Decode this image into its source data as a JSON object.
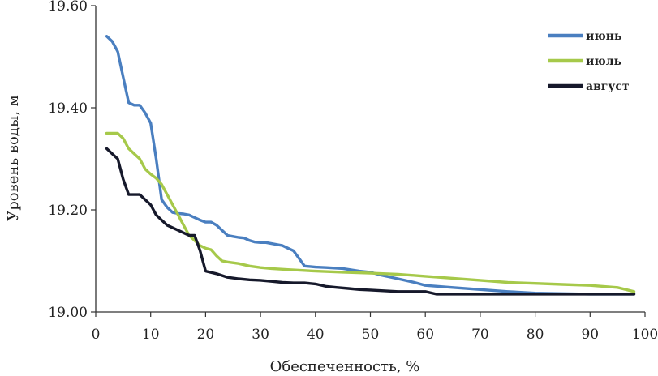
{
  "chart_data": {
    "type": "line",
    "title": "",
    "xlabel": "Обеспеченность, %",
    "ylabel": "Уровень воды, м",
    "xlim": [
      0,
      100
    ],
    "ylim": [
      19.0,
      19.6
    ],
    "x_ticks": [
      "0",
      "10",
      "20",
      "30",
      "40",
      "50",
      "60",
      "70",
      "80",
      "90",
      "100"
    ],
    "y_ticks": [
      "19.00",
      "19.20",
      "19.40",
      "19.60"
    ],
    "grid": false,
    "legend_position": "top-right",
    "series": [
      {
        "name": "июнь",
        "color": "#4a7fc0",
        "x": [
          2,
          3,
          4,
          5,
          6,
          7,
          8,
          9,
          10,
          11,
          12,
          13,
          14,
          15,
          16,
          17,
          18,
          19,
          20,
          21,
          22,
          23,
          24,
          25,
          26,
          27,
          28,
          29,
          30,
          31,
          32,
          33,
          34,
          35,
          36,
          37,
          38,
          40,
          42,
          45,
          48,
          50,
          52,
          55,
          58,
          60,
          65,
          70,
          75,
          80,
          85,
          90,
          95,
          98
        ],
        "y": [
          19.54,
          19.53,
          19.51,
          19.46,
          19.41,
          19.405,
          19.405,
          19.39,
          19.37,
          19.3,
          19.22,
          19.205,
          19.195,
          19.193,
          19.192,
          19.19,
          19.185,
          19.18,
          19.176,
          19.176,
          19.17,
          19.16,
          19.15,
          19.148,
          19.146,
          19.145,
          19.14,
          19.137,
          19.136,
          19.136,
          19.134,
          19.132,
          19.13,
          19.125,
          19.12,
          19.105,
          19.09,
          19.088,
          19.087,
          19.085,
          19.08,
          19.078,
          19.072,
          19.065,
          19.058,
          19.052,
          19.048,
          19.044,
          19.04,
          19.037,
          19.036,
          19.035,
          19.035,
          19.035
        ]
      },
      {
        "name": "июль",
        "color": "#a6c94a",
        "x": [
          2,
          3,
          4,
          5,
          6,
          7,
          8,
          9,
          10,
          11,
          12,
          13,
          14,
          15,
          16,
          17,
          18,
          19,
          20,
          21,
          22,
          23,
          24,
          26,
          28,
          30,
          32,
          35,
          40,
          45,
          50,
          55,
          60,
          65,
          70,
          75,
          80,
          85,
          90,
          95,
          98
        ],
        "y": [
          19.35,
          19.35,
          19.35,
          19.34,
          19.32,
          19.31,
          19.3,
          19.28,
          19.27,
          19.262,
          19.25,
          19.23,
          19.21,
          19.19,
          19.17,
          19.15,
          19.14,
          19.13,
          19.125,
          19.122,
          19.11,
          19.1,
          19.098,
          19.095,
          19.09,
          19.087,
          19.085,
          19.083,
          19.08,
          19.078,
          19.076,
          19.074,
          19.07,
          19.066,
          19.062,
          19.058,
          19.056,
          19.054,
          19.052,
          19.048,
          19.04
        ]
      },
      {
        "name": "август",
        "color": "#16192b",
        "x": [
          2,
          3,
          4,
          5,
          6,
          7,
          8,
          9,
          10,
          11,
          12,
          13,
          14,
          15,
          16,
          17,
          18,
          19,
          20,
          22,
          24,
          26,
          28,
          30,
          32,
          34,
          36,
          38,
          40,
          42,
          44,
          46,
          48,
          50,
          55,
          60,
          62,
          65,
          70,
          75,
          80,
          85,
          90,
          95,
          98
        ],
        "y": [
          19.32,
          19.31,
          19.3,
          19.26,
          19.23,
          19.23,
          19.23,
          19.22,
          19.21,
          19.19,
          19.18,
          19.17,
          19.165,
          19.16,
          19.155,
          19.15,
          19.15,
          19.12,
          19.08,
          19.075,
          19.068,
          19.065,
          19.063,
          19.062,
          19.06,
          19.058,
          19.057,
          19.057,
          19.055,
          19.05,
          19.048,
          19.046,
          19.044,
          19.043,
          19.04,
          19.04,
          19.035,
          19.035,
          19.035,
          19.035,
          19.035,
          19.035,
          19.035,
          19.035,
          19.035
        ]
      }
    ]
  }
}
